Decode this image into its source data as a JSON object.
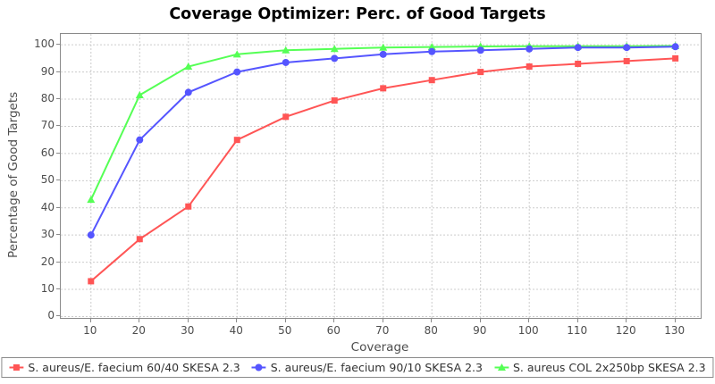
{
  "chart_data": {
    "type": "line",
    "title": "Coverage Optimizer: Perc. of Good Targets",
    "xlabel": "Coverage",
    "ylabel": "Percentage of Good Targets",
    "x": [
      10,
      20,
      30,
      40,
      50,
      60,
      70,
      80,
      90,
      100,
      110,
      120,
      130
    ],
    "x_ticks": [
      10,
      20,
      30,
      40,
      50,
      60,
      70,
      80,
      90,
      100,
      110,
      120,
      130
    ],
    "y_ticks": [
      0,
      10,
      20,
      30,
      40,
      50,
      60,
      70,
      80,
      90,
      100
    ],
    "xlim": [
      3.8,
      135.2
    ],
    "ylim": [
      -0.5,
      104
    ],
    "grid": "dashed",
    "legend_position": "bottom",
    "series": [
      {
        "name": "S. aureus/E. faecium 60/40 SKESA 2.3",
        "marker": "square",
        "color": "#ff5555",
        "values": [
          13,
          28.5,
          40.5,
          65,
          73.5,
          79.5,
          84,
          87,
          90,
          92,
          93,
          94,
          95
        ]
      },
      {
        "name": "S. aureus/E. faecium 90/10 SKESA 2.3",
        "marker": "circle",
        "color": "#5555ff",
        "values": [
          30,
          65,
          82.5,
          90,
          93.5,
          95,
          96.5,
          97.5,
          98,
          98.5,
          99,
          99,
          99.3
        ]
      },
      {
        "name": "S. aureus COL 2x250bp SKESA 2.3",
        "marker": "triangle",
        "color": "#55ff55",
        "values": [
          43,
          81.5,
          92,
          96.5,
          98,
          98.5,
          99,
          99.2,
          99.4,
          99.5,
          99.5,
          99.5,
          99.6
        ]
      }
    ],
    "style": {
      "grid_color": "#cccccc",
      "plot_border_color": "#8a8a8a",
      "tick_label_color": "#4d4d4d",
      "title_color": "#000000",
      "background_color": "#ffffff"
    }
  }
}
